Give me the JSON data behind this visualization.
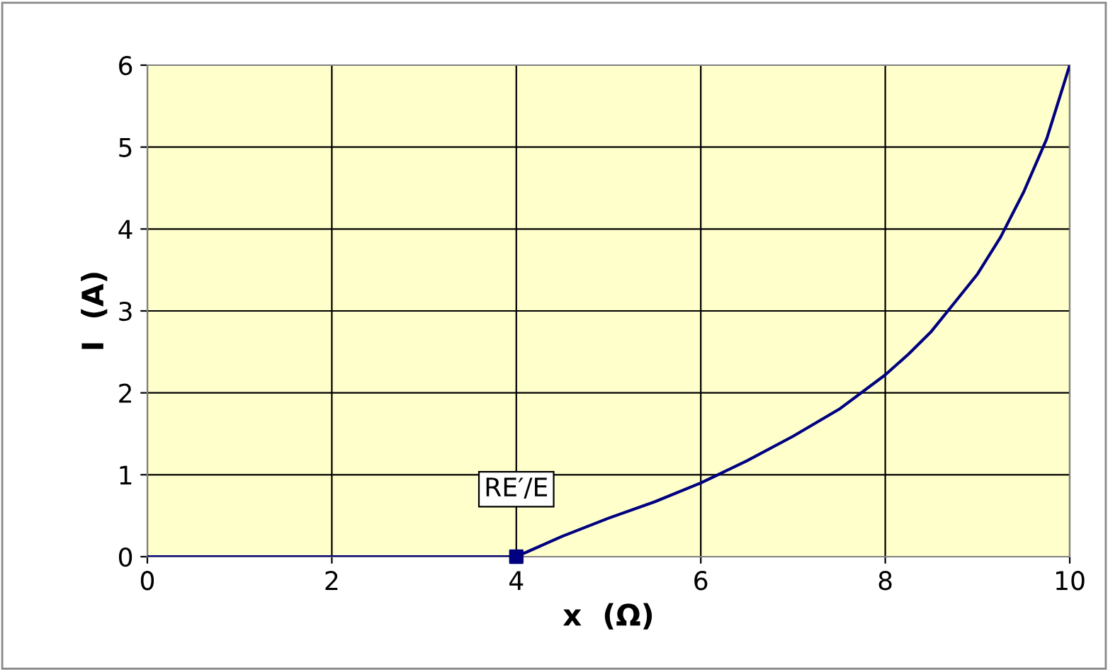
{
  "chart_data": {
    "type": "line",
    "xlabel": "x  (Ω)",
    "ylabel": "I  (A)",
    "series": [
      {
        "color": "#000080",
        "marker": "none",
        "x": [
          0,
          1,
          2,
          3,
          4,
          4.5,
          5,
          5.5,
          6,
          6.5,
          7,
          7.5,
          8,
          8.25,
          8.5,
          8.75,
          9,
          9.25,
          9.5,
          9.75,
          10
        ],
        "values": [
          0,
          0,
          0,
          0,
          0,
          0.25,
          0.47,
          0.67,
          0.9,
          1.17,
          1.47,
          1.8,
          2.22,
          2.47,
          2.75,
          3.1,
          3.45,
          3.9,
          4.45,
          5.1,
          6
        ]
      },
      {
        "type": "scatter",
        "color": "#000080",
        "marker": "square",
        "x": [
          4
        ],
        "values": [
          0
        ]
      }
    ],
    "annotations": [
      {
        "text": "RE′/E",
        "x": 4,
        "y": 0
      }
    ],
    "xlim": [
      0,
      10
    ],
    "ylim": [
      0,
      6
    ],
    "xticks": [
      0,
      2,
      4,
      6,
      8,
      10
    ],
    "yticks": [
      0,
      1,
      2,
      3,
      4,
      5,
      6
    ],
    "grid": true,
    "legend": false
  }
}
